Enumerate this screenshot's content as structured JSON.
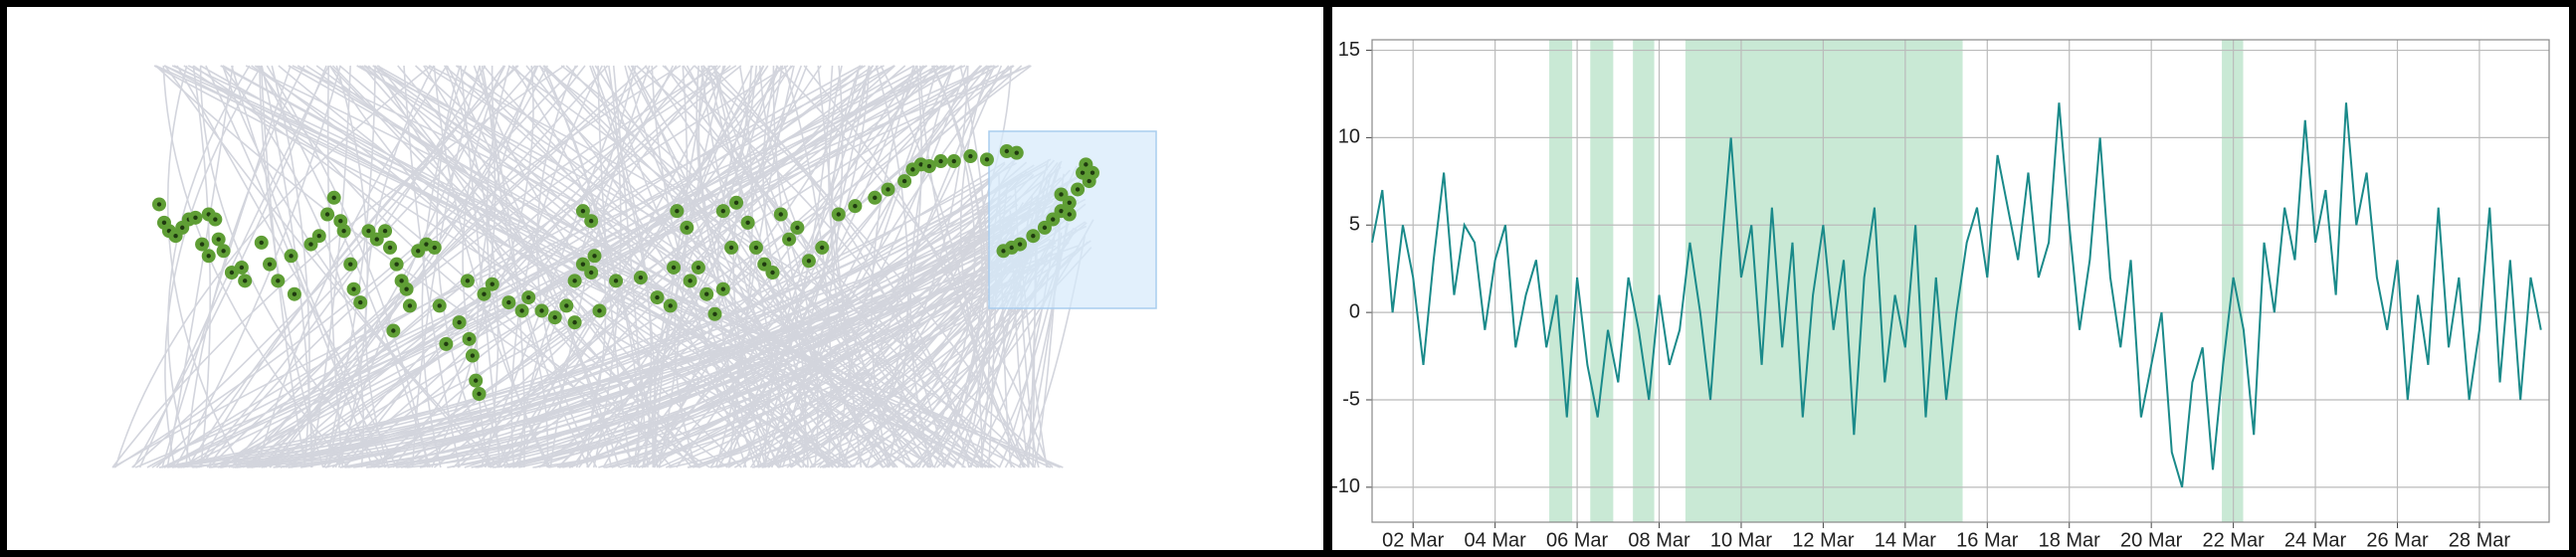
{
  "chart_data": [
    {
      "type": "scatter",
      "color": "#5f9e35",
      "center_color": "#1f3a10",
      "x": [
        98,
        101,
        104,
        108,
        112,
        116,
        120,
        124,
        128,
        132,
        128,
        137,
        134,
        142,
        148,
        150,
        160,
        165,
        170,
        180,
        178,
        190,
        195,
        200,
        204,
        208,
        210,
        214,
        216,
        220,
        225,
        230,
        235,
        238,
        242,
        245,
        248,
        250,
        240,
        255,
        260,
        265,
        268,
        272,
        280,
        286,
        288,
        290,
        292,
        285,
        295,
        300,
        310,
        318,
        322,
        330,
        338,
        345,
        350,
        355,
        360,
        362,
        365,
        350,
        355,
        360,
        375,
        390,
        400,
        408,
        410,
        412,
        418,
        420,
        425,
        430,
        435,
        440,
        445,
        440,
        448,
        455,
        460,
        465,
        470,
        475,
        480,
        485,
        492,
        500,
        510,
        520,
        532,
        540,
        550,
        555,
        560,
        565,
        572,
        580,
        590,
        600,
        612,
        618,
        610,
        615,
        620,
        628,
        635,
        640,
        645,
        650,
        655,
        658,
        660,
        662,
        664,
        650,
        645
      ],
      "y": [
        124,
        135,
        140,
        143,
        138,
        133,
        132,
        148,
        130,
        133,
        155,
        152,
        145,
        165,
        162,
        170,
        147,
        160,
        170,
        178,
        155,
        148,
        143,
        130,
        120,
        134,
        140,
        160,
        175,
        183,
        140,
        145,
        140,
        150,
        160,
        170,
        175,
        185,
        200,
        152,
        148,
        150,
        185,
        208,
        195,
        205,
        215,
        230,
        238,
        170,
        178,
        172,
        183,
        188,
        180,
        188,
        192,
        185,
        170,
        160,
        165,
        155,
        188,
        195,
        128,
        134,
        170,
        168,
        180,
        185,
        162,
        128,
        138,
        170,
        162,
        178,
        190,
        175,
        150,
        128,
        123,
        135,
        150,
        160,
        165,
        130,
        145,
        138,
        158,
        150,
        130,
        125,
        120,
        115,
        110,
        103,
        100,
        101,
        98,
        98,
        95,
        97,
        92,
        93,
        152,
        150,
        148,
        143,
        138,
        133,
        128,
        123,
        115,
        105,
        100,
        110,
        105,
        130,
        118
      ]
    },
    {
      "type": "line",
      "color": "#1a8a8a",
      "shade_color": "#c9e9d5",
      "grid": true,
      "shaded_spans": [
        [
          5.32,
          5.88
        ],
        [
          6.32,
          6.88
        ],
        [
          7.36,
          7.88
        ],
        [
          8.64,
          15.4
        ],
        [
          21.72,
          22.24
        ]
      ],
      "xlim": [
        1,
        29.7
      ],
      "ylim": [
        -12,
        15.6
      ],
      "xticks": [
        {
          "value": 2,
          "label": "02 Mar"
        },
        {
          "value": 4,
          "label": "04 Mar"
        },
        {
          "value": 6,
          "label": "06 Mar"
        },
        {
          "value": 8,
          "label": "08 Mar"
        },
        {
          "value": 10,
          "label": "10 Mar"
        },
        {
          "value": 12,
          "label": "12 Mar"
        },
        {
          "value": 14,
          "label": "14 Mar"
        },
        {
          "value": 16,
          "label": "16 Mar"
        },
        {
          "value": 18,
          "label": "18 Mar"
        },
        {
          "value": 20,
          "label": "20 Mar"
        },
        {
          "value": 22,
          "label": "22 Mar"
        },
        {
          "value": 24,
          "label": "24 Mar"
        },
        {
          "value": 26,
          "label": "26 Mar"
        },
        {
          "value": 28,
          "label": "28 Mar"
        }
      ],
      "yticks": [
        -10,
        -5,
        0,
        5,
        10,
        15
      ],
      "x": [
        1,
        1.25,
        1.5,
        1.75,
        2,
        2.25,
        2.5,
        2.75,
        3,
        3.25,
        3.5,
        3.75,
        4,
        4.25,
        4.5,
        4.75,
        5,
        5.25,
        5.5,
        5.75,
        6,
        6.25,
        6.5,
        6.75,
        7,
        7.25,
        7.5,
        7.75,
        8,
        8.25,
        8.5,
        8.75,
        9,
        9.25,
        9.5,
        9.75,
        10,
        10.25,
        10.5,
        10.75,
        11,
        11.25,
        11.5,
        11.75,
        12,
        12.25,
        12.5,
        12.75,
        13,
        13.25,
        13.5,
        13.75,
        14,
        14.25,
        14.5,
        14.75,
        15,
        15.25,
        15.5,
        15.75,
        16,
        16.25,
        16.5,
        16.75,
        17,
        17.25,
        17.5,
        17.75,
        18,
        18.25,
        18.5,
        18.75,
        19,
        19.25,
        19.5,
        19.75,
        20,
        20.25,
        20.5,
        20.75,
        21,
        21.25,
        21.5,
        21.75,
        22,
        22.25,
        22.5,
        22.75,
        23,
        23.25,
        23.5,
        23.75,
        24,
        24.25,
        24.5,
        24.75,
        25,
        25.25,
        25.5,
        25.75,
        26,
        26.25,
        26.5,
        26.75,
        27,
        27.25,
        27.5,
        27.75,
        28,
        28.25,
        28.5,
        28.75,
        29,
        29.25,
        29.5
      ],
      "values": [
        4,
        7,
        0,
        5,
        2,
        -3,
        3,
        8,
        1,
        5,
        4,
        -1,
        3,
        5,
        -2,
        1,
        3,
        -2,
        1,
        -6,
        2,
        -3,
        -6,
        -1,
        -4,
        2,
        -1,
        -5,
        1,
        -3,
        -1,
        4,
        0,
        -5,
        3,
        10,
        2,
        5,
        -3,
        6,
        -2,
        4,
        -6,
        1,
        5,
        -1,
        3,
        -7,
        2,
        6,
        -4,
        1,
        -2,
        5,
        -6,
        2,
        -5,
        0,
        4,
        6,
        2,
        9,
        6,
        3,
        8,
        2,
        4,
        12,
        5,
        -1,
        3,
        10,
        2,
        -2,
        3,
        -6,
        -3,
        0,
        -8,
        -10,
        -4,
        -2,
        -9,
        -3,
        2,
        -1,
        -7,
        4,
        0,
        6,
        3,
        11,
        4,
        7,
        1,
        12,
        5,
        8,
        2,
        -1,
        3,
        -5,
        1,
        -3,
        6,
        -2,
        2,
        -5,
        -1,
        6,
        -4,
        3,
        -5,
        2,
        -1
      ]
    }
  ]
}
